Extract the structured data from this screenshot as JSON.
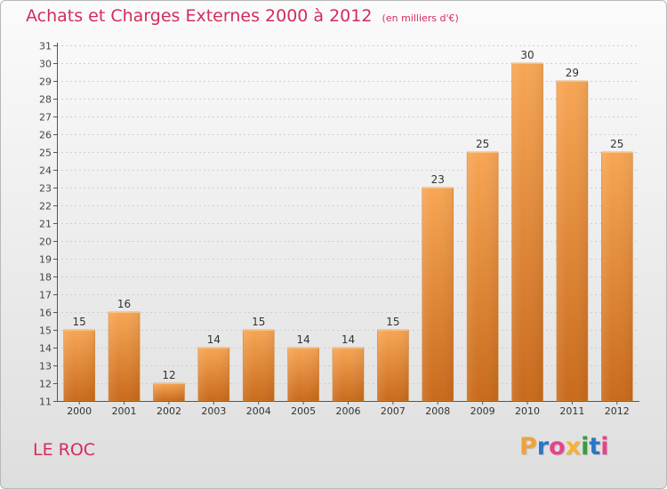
{
  "title": "Achats et Charges Externes 2000 à 2012",
  "unit": "(en milliers d'€)",
  "place": "LE ROC",
  "brand": "Proxiti",
  "brand_colors": [
    "#f0a23a",
    "#2a76c6",
    "#e8428a",
    "#f7b233",
    "#3a9a3a",
    "#2a76c6",
    "#e8428a"
  ],
  "chart_data": {
    "type": "bar",
    "categories": [
      "2000",
      "2001",
      "2002",
      "2003",
      "2004",
      "2005",
      "2006",
      "2007",
      "2008",
      "2009",
      "2010",
      "2011",
      "2012"
    ],
    "values": [
      15,
      16,
      12,
      14,
      15,
      14,
      14,
      15,
      23,
      25,
      30,
      29,
      25
    ],
    "ylim": [
      11,
      31
    ],
    "yticks": [
      11,
      12,
      13,
      14,
      15,
      16,
      17,
      18,
      19,
      20,
      21,
      22,
      23,
      24,
      25,
      26,
      27,
      28,
      29,
      30,
      31
    ],
    "grid": true,
    "bar_color_top": "#f7a655",
    "bar_color_bottom": "#c96a1c",
    "title_color": "#d42c5b"
  }
}
